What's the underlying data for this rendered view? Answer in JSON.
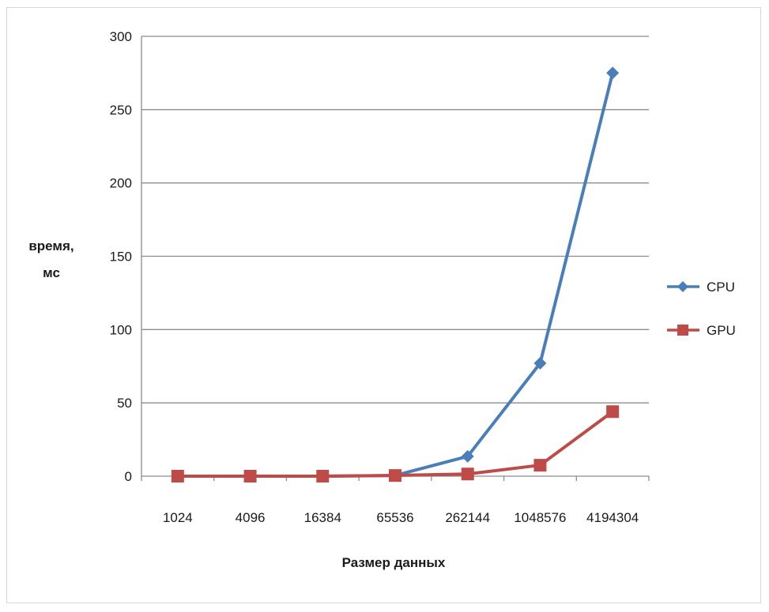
{
  "chart_data": {
    "type": "line",
    "categories": [
      "1024",
      "4096",
      "16384",
      "65536",
      "262144",
      "1048576",
      "4194304"
    ],
    "series": [
      {
        "name": "CPU",
        "color": "#4a7ebb",
        "marker": "diamond",
        "values": [
          0,
          0,
          0,
          0.5,
          13.5,
          77,
          275
        ]
      },
      {
        "name": "GPU",
        "color": "#be4b48",
        "marker": "square",
        "values": [
          0,
          0,
          0,
          0.5,
          1.5,
          7.5,
          44
        ]
      }
    ],
    "title": "",
    "xlabel": "Размер данных",
    "ylabel_lines": [
      "время,",
      "мс"
    ],
    "ylim": [
      0,
      300
    ],
    "yticks": [
      "0",
      "50",
      "100",
      "150",
      "200",
      "250",
      "300"
    ],
    "grid": true,
    "legend": "right"
  }
}
